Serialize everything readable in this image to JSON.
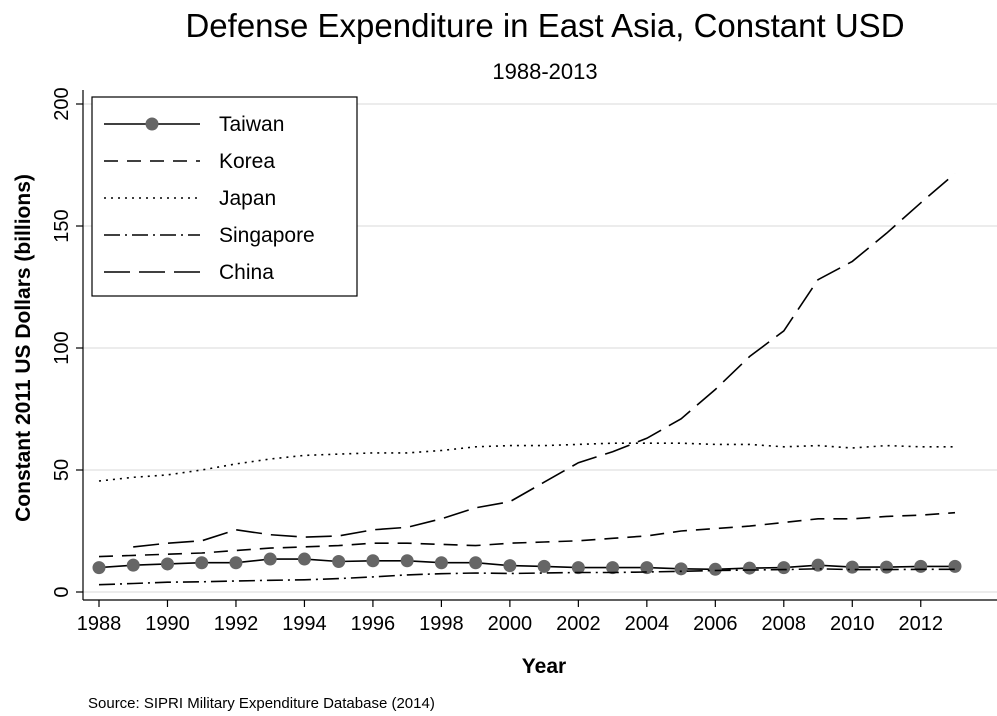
{
  "chart_data": {
    "type": "line",
    "title": "Defense Expenditure in East Asia, Constant USD",
    "subtitle": "1988-2013",
    "xlabel": "Year",
    "ylabel": "Constant 2011 US Dollars (billions)",
    "note": "Source: SIPRI Military Expenditure Database (2014)",
    "xlim": [
      1988,
      2013
    ],
    "ylim": [
      0,
      200
    ],
    "x_ticks": [
      1988,
      1990,
      1992,
      1994,
      1996,
      1998,
      2000,
      2002,
      2004,
      2006,
      2008,
      2010,
      2012
    ],
    "y_ticks": [
      0,
      50,
      100,
      150,
      200
    ],
    "grid": true,
    "legend_position": "top-left",
    "x": [
      1988,
      1989,
      1990,
      1991,
      1992,
      1993,
      1994,
      1995,
      1996,
      1997,
      1998,
      1999,
      2000,
      2001,
      2002,
      2003,
      2004,
      2005,
      2006,
      2007,
      2008,
      2009,
      2010,
      2011,
      2012,
      2013
    ],
    "series": [
      {
        "name": "Taiwan",
        "style": "solid-markers",
        "values": [
          10,
          11,
          11.5,
          12,
          12,
          13.5,
          13.5,
          12.5,
          12.8,
          12.8,
          12,
          12,
          10.8,
          10.5,
          10,
          10,
          10,
          9.5,
          9.3,
          9.8,
          10,
          11,
          10.2,
          10.2,
          10.5,
          10.5
        ]
      },
      {
        "name": "Korea",
        "style": "dash",
        "values": [
          14.5,
          15,
          15.5,
          16,
          17,
          18,
          18.5,
          19,
          20,
          20,
          19.5,
          19,
          20,
          20.5,
          21,
          22,
          23,
          25,
          26,
          27,
          28.5,
          30,
          30,
          31,
          31.5,
          32.5
        ]
      },
      {
        "name": "Japan",
        "style": "dot",
        "values": [
          45.5,
          47,
          48,
          50,
          52.5,
          54.5,
          56,
          56.5,
          57,
          57,
          58,
          59.5,
          60,
          60,
          60.5,
          61,
          61,
          61,
          60.5,
          60.5,
          59.5,
          60,
          59,
          60,
          59.5,
          59.5
        ]
      },
      {
        "name": "Singapore",
        "style": "dash-dot",
        "values": [
          3,
          3.5,
          4,
          4.2,
          4.5,
          4.8,
          5,
          5.5,
          6.2,
          7,
          7.5,
          7.8,
          7.6,
          7.8,
          8,
          8,
          8.2,
          8.5,
          8.8,
          9,
          9.2,
          9.5,
          9.2,
          9.2,
          9.3,
          9.3
        ]
      },
      {
        "name": "China",
        "style": "long-dash",
        "values": [
          null,
          18.5,
          20,
          21,
          25.5,
          23.5,
          22.5,
          23,
          25.5,
          26.5,
          30,
          34.5,
          37,
          45,
          53,
          57.5,
          63,
          71,
          83,
          96.5,
          107,
          128,
          135.5,
          147,
          159.5,
          171.5
        ]
      }
    ]
  }
}
